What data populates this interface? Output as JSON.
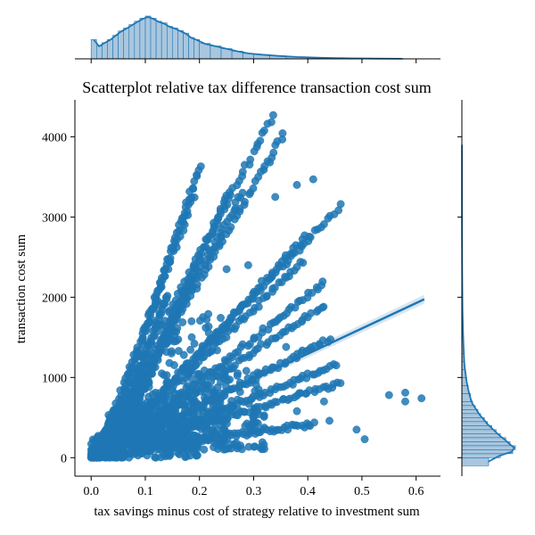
{
  "chart_data": {
    "type": "scatter",
    "title": "Scatterplot relative tax difference transaction cost sum",
    "xlabel": "tax savings minus cost of strategy relative to investment sum",
    "ylabel": "transaction cost sum",
    "xlim": [
      -0.03,
      0.645
    ],
    "ylim": [
      -230,
      4460
    ],
    "x_ticks": [
      0.0,
      0.1,
      0.2,
      0.3,
      0.4,
      0.5,
      0.6
    ],
    "x_tick_labels": [
      "0.0",
      "0.1",
      "0.2",
      "0.3",
      "0.4",
      "0.5",
      "0.6"
    ],
    "y_ticks": [
      0,
      1000,
      2000,
      3000,
      4000
    ],
    "y_tick_labels": [
      "0",
      "1000",
      "2000",
      "3000",
      "4000"
    ],
    "grid": false,
    "colors": {
      "points": "#1f77b4",
      "regression": "#1f77b4",
      "hist_fill": "#a9c6de",
      "hist_edge": "#1f77b4"
    },
    "regression": {
      "x": [
        0.0,
        0.615
      ],
      "y": [
        30,
        1975
      ]
    },
    "streaks": [
      {
        "x": [
          0.02,
          0.335
        ],
        "y": [
          250,
          4250
        ]
      },
      {
        "x": [
          0.03,
          0.355
        ],
        "y": [
          220,
          4030
        ]
      },
      {
        "x": [
          0.02,
          0.19
        ],
        "y": [
          150,
          3260
        ]
      },
      {
        "x": [
          0.04,
          0.2
        ],
        "y": [
          350,
          3620
        ]
      },
      {
        "x": [
          0.03,
          0.28
        ],
        "y": [
          220,
          3310
        ]
      },
      {
        "x": [
          0.05,
          0.255
        ],
        "y": [
          250,
          3300
        ]
      },
      {
        "x": [
          0.05,
          0.46
        ],
        "y": [
          250,
          3140
        ]
      },
      {
        "x": [
          0.06,
          0.4
        ],
        "y": [
          300,
          2780
        ]
      },
      {
        "x": [
          0.05,
          0.39
        ],
        "y": [
          220,
          2450
        ]
      },
      {
        "x": [
          0.06,
          0.43
        ],
        "y": [
          200,
          2180
        ]
      },
      {
        "x": [
          0.05,
          0.43
        ],
        "y": [
          200,
          1900
        ]
      },
      {
        "x": [
          0.07,
          0.44
        ],
        "y": [
          180,
          1480
        ]
      },
      {
        "x": [
          0.08,
          0.45
        ],
        "y": [
          160,
          1150
        ]
      },
      {
        "x": [
          0.08,
          0.46
        ],
        "y": [
          150,
          930
        ]
      },
      {
        "x": [
          0.09,
          0.41
        ],
        "y": [
          120,
          420
        ]
      },
      {
        "x": [
          0.05,
          0.19
        ],
        "y": [
          150,
          2280
        ]
      },
      {
        "x": [
          0.04,
          0.14
        ],
        "y": [
          120,
          2020
        ]
      }
    ],
    "cloud": [
      {
        "x": [
          0.0,
          0.2
        ],
        "y": [
          0,
          900
        ]
      },
      {
        "x": [
          0.03,
          0.25
        ],
        "y": [
          150,
          1800
        ]
      },
      {
        "x": [
          0.08,
          0.32
        ],
        "y": [
          100,
          1100
        ]
      },
      {
        "x": [
          0.0,
          0.06
        ],
        "y": [
          0,
          350
        ]
      }
    ],
    "outliers": [
      {
        "x": 0.33,
        "y": 3680
      },
      {
        "x": 0.38,
        "y": 3400
      },
      {
        "x": 0.41,
        "y": 3470
      },
      {
        "x": 0.55,
        "y": 780
      },
      {
        "x": 0.58,
        "y": 810
      },
      {
        "x": 0.58,
        "y": 700
      },
      {
        "x": 0.61,
        "y": 740
      },
      {
        "x": 0.44,
        "y": 460
      },
      {
        "x": 0.49,
        "y": 350
      },
      {
        "x": 0.505,
        "y": 230
      },
      {
        "x": 0.34,
        "y": 3250
      },
      {
        "x": 0.22,
        "y": 2500
      },
      {
        "x": 0.25,
        "y": 2350
      },
      {
        "x": 0.43,
        "y": 700
      },
      {
        "x": 0.36,
        "y": 1380
      },
      {
        "x": 0.29,
        "y": 2400
      },
      {
        "x": 0.24,
        "y": 2750
      },
      {
        "x": 0.38,
        "y": 580
      }
    ],
    "x_histogram": {
      "bins": [
        0.0,
        0.01,
        0.02,
        0.03,
        0.04,
        0.05,
        0.06,
        0.07,
        0.08,
        0.09,
        0.1,
        0.11,
        0.12,
        0.13,
        0.14,
        0.15,
        0.16,
        0.17,
        0.18,
        0.19,
        0.2,
        0.22,
        0.24,
        0.26,
        0.28,
        0.3,
        0.33,
        0.36,
        0.4,
        0.45,
        0.5,
        0.55,
        0.6
      ],
      "counts": [
        0.45,
        0.3,
        0.38,
        0.45,
        0.55,
        0.65,
        0.72,
        0.8,
        0.88,
        0.95,
        1.0,
        0.95,
        0.88,
        0.84,
        0.76,
        0.72,
        0.66,
        0.6,
        0.5,
        0.45,
        0.36,
        0.3,
        0.24,
        0.18,
        0.13,
        0.1,
        0.07,
        0.045,
        0.025,
        0.012,
        0.006,
        0.003
      ]
    },
    "y_histogram": {
      "bins": [
        -100,
        0,
        50,
        100,
        150,
        200,
        250,
        300,
        350,
        400,
        450,
        500,
        550,
        600,
        650,
        700,
        800,
        900,
        1000,
        1100,
        1200,
        1300,
        1500,
        1700,
        2000,
        2500,
        3000,
        3500,
        4300
      ],
      "counts": [
        0.5,
        0.72,
        0.95,
        1.0,
        0.9,
        0.82,
        0.72,
        0.64,
        0.56,
        0.48,
        0.42,
        0.35,
        0.3,
        0.25,
        0.2,
        0.16,
        0.12,
        0.09,
        0.07,
        0.05,
        0.04,
        0.03,
        0.02,
        0.012,
        0.007,
        0.004,
        0.002,
        0.001
      ]
    }
  }
}
